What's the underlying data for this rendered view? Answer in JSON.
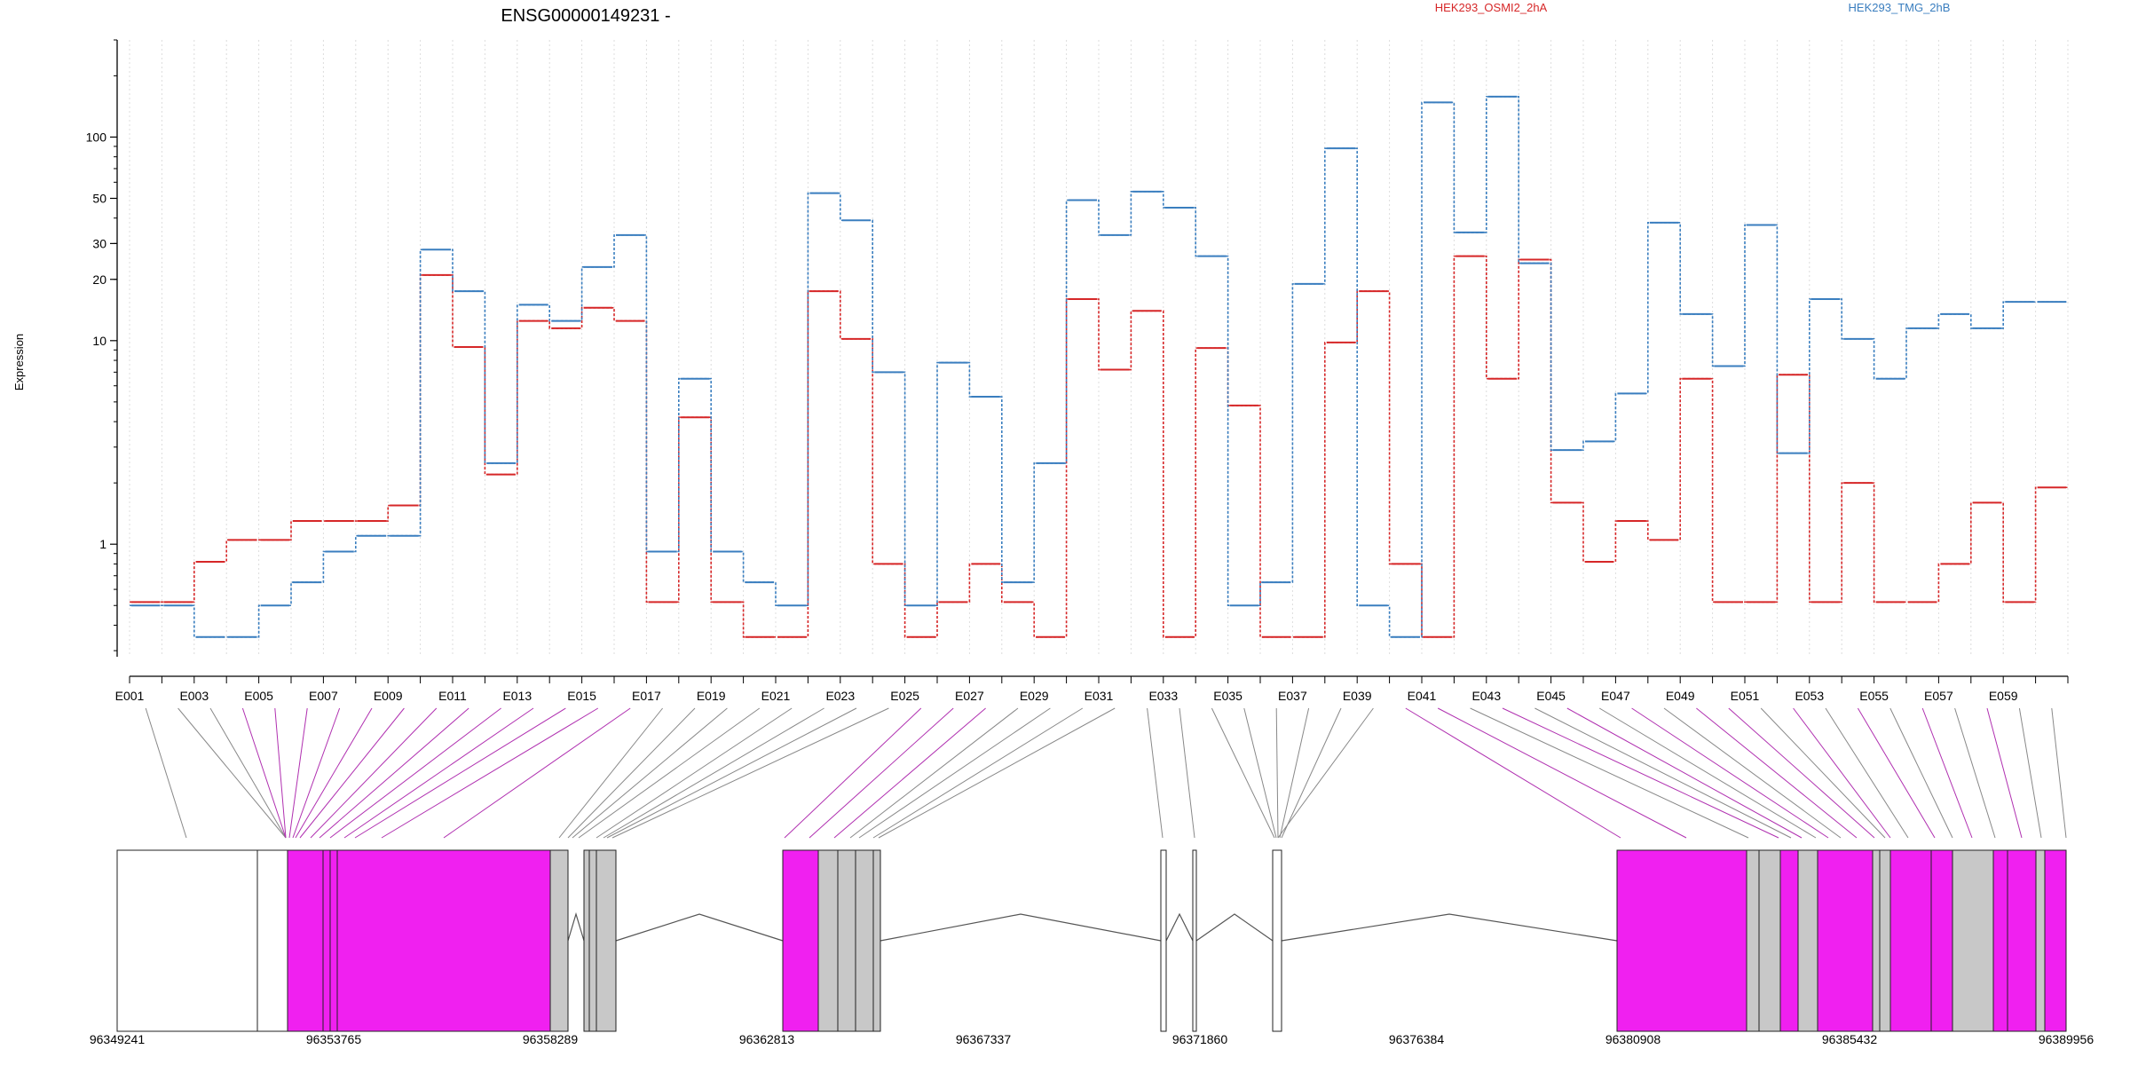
{
  "chart_data": {
    "type": "line",
    "title": "ENSG00000149231 -",
    "ylabel": "Expression",
    "yscale": "log",
    "ylim": [
      0.28,
      300
    ],
    "ytick_values": [
      1,
      10,
      20,
      30,
      50,
      100
    ],
    "ytick_labels": [
      "1",
      "10",
      "20",
      "30",
      "50",
      "100"
    ],
    "categories": [
      "E001",
      "E002",
      "E003",
      "E004",
      "E005",
      "E006",
      "E007",
      "E008",
      "E009",
      "E010",
      "E011",
      "E012",
      "E013",
      "E014",
      "E015",
      "E016",
      "E017",
      "E018",
      "E019",
      "E020",
      "E021",
      "E022",
      "E023",
      "E024",
      "E025",
      "E026",
      "E027",
      "E028",
      "E029",
      "E030",
      "E031",
      "E032",
      "E033",
      "E034",
      "E035",
      "E036",
      "E037",
      "E038",
      "E039",
      "E040",
      "E041",
      "E042",
      "E043",
      "E044",
      "E045",
      "E046",
      "E047",
      "E048",
      "E049",
      "E050",
      "E051",
      "E052",
      "E053",
      "E054",
      "E055",
      "E056",
      "E057",
      "E058",
      "E059",
      "E060"
    ],
    "xtick_labels": [
      "E001",
      "E003",
      "E005",
      "E007",
      "E009",
      "E011",
      "E013",
      "E015",
      "E017",
      "E019",
      "E021",
      "E023",
      "E025",
      "E027",
      "E029",
      "E031",
      "E033",
      "E035",
      "E037",
      "E039",
      "E041",
      "E043",
      "E045",
      "E047",
      "E049",
      "E051",
      "E053",
      "E055",
      "E057",
      "E059"
    ],
    "series": [
      {
        "name": "HEK293_OSMI2_2hA",
        "color": "#d62728",
        "values": [
          0.52,
          0.52,
          0.82,
          1.05,
          1.05,
          1.3,
          1.3,
          1.3,
          1.55,
          21,
          9.3,
          2.2,
          12.5,
          11.5,
          14.5,
          12.5,
          0.52,
          4.2,
          0.52,
          0.35,
          0.35,
          17.5,
          10.2,
          0.8,
          0.35,
          0.52,
          0.8,
          0.52,
          0.35,
          16,
          7.2,
          14,
          0.35,
          9.2,
          4.8,
          0.35,
          0.35,
          9.8,
          17.5,
          0.8,
          0.35,
          26,
          6.5,
          25,
          1.6,
          0.82,
          1.3,
          1.05,
          6.5,
          0.52,
          0.52,
          6.8,
          0.52,
          2,
          0.52,
          0.52,
          0.8,
          1.6,
          0.52,
          1.9
        ]
      },
      {
        "name": "HEK293_TMG_2hB",
        "color": "#3a7ebf",
        "values": [
          0.5,
          0.5,
          0.35,
          0.35,
          0.5,
          0.65,
          0.92,
          1.1,
          1.1,
          28,
          17.5,
          2.5,
          15,
          12.5,
          23,
          33,
          0.92,
          6.5,
          0.92,
          0.65,
          0.5,
          53,
          39,
          7,
          0.5,
          7.8,
          5.3,
          0.65,
          2.5,
          49,
          33,
          54,
          45,
          26,
          0.5,
          0.65,
          19,
          88,
          0.5,
          0.35,
          148,
          34,
          158,
          24,
          2.9,
          3.2,
          5.5,
          38,
          13.5,
          7.5,
          37,
          2.8,
          16,
          10.2,
          6.5,
          11.5,
          13.5,
          11.5,
          15.5,
          15.5
        ]
      }
    ],
    "gene_model": {
      "coordinate_ticks": [
        "96349241",
        "96353765",
        "96358289",
        "96362813",
        "96367337",
        "96371860",
        "96376384",
        "96380908",
        "96385432",
        "96389956"
      ],
      "highlight_color": "#f020f0",
      "exon_color": "#c8c8c8"
    },
    "legend_placement": "top-right",
    "grid": "vertical dotted lines at each exon bin"
  }
}
